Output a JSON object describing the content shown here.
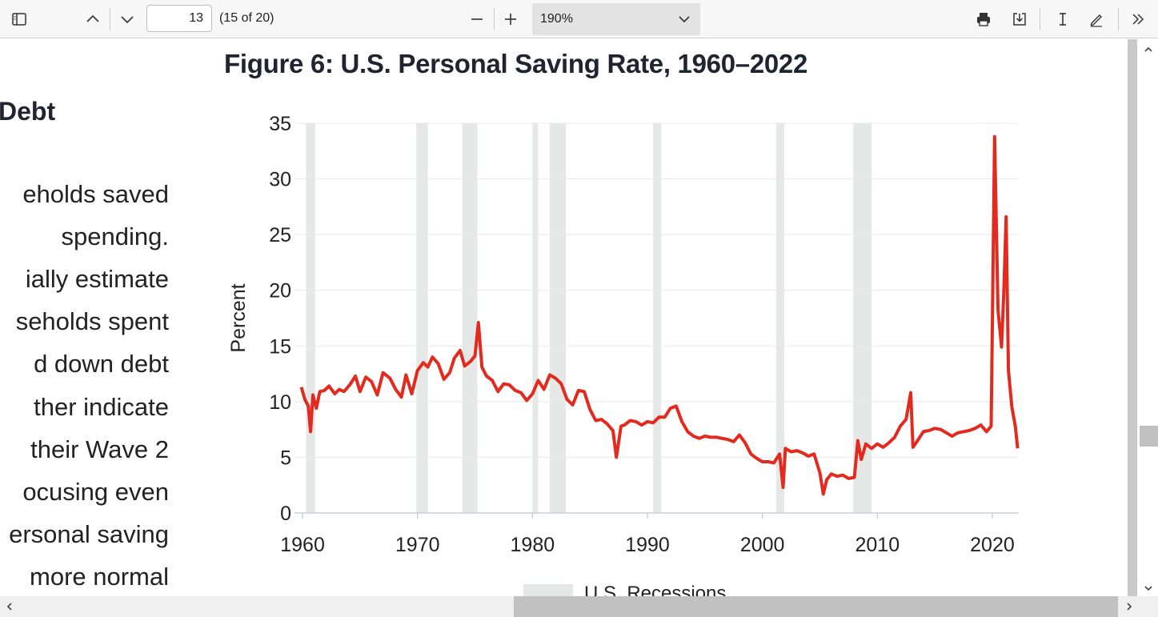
{
  "toolbar": {
    "page_number": "13",
    "page_count": "(15 of 20)",
    "zoom": "190%",
    "icons": [
      "sidebar-toggle-icon",
      "chevron-up-icon",
      "chevron-down-icon",
      "minus-icon",
      "plus-icon",
      "print-icon",
      "save-icon",
      "text-cursor-icon",
      "draw-icon",
      "more-tools-icon"
    ]
  },
  "document": {
    "figure_title": "Figure 6: U.S. Personal Saving Rate, 1960–2022",
    "section_heading": "Debt",
    "body_lines": [
      "eholds  saved",
      "spending.",
      "ially  estimate",
      "seholds spent",
      "d  down  debt",
      "ther  indicate",
      " their Wave 2",
      "ocusing even",
      "ersonal saving",
      "more  normal"
    ]
  },
  "chart_data": {
    "type": "line",
    "title": "Figure 6: U.S. Personal Saving Rate, 1960–2022",
    "xlabel": "",
    "ylabel": "Percent",
    "xlim": [
      1959.3,
      2022.3
    ],
    "ylim": [
      0,
      35
    ],
    "x_ticks": [
      "1960",
      "1970",
      "1980",
      "1990",
      "2000",
      "2010",
      "2020"
    ],
    "y_ticks": [
      "0",
      "5",
      "10",
      "15",
      "20",
      "25",
      "30",
      "35"
    ],
    "grid": "horizontal",
    "legend": {
      "placement": "bottom",
      "entries": [
        "U.S. Recessions"
      ]
    },
    "colors": {
      "series": "#e32a1e",
      "recession": "#e6e8e8",
      "grid": "#e8e8e8"
    },
    "recessions": [
      [
        1960.3,
        1961.1
      ],
      [
        1969.9,
        1970.9
      ],
      [
        1973.9,
        1975.2
      ],
      [
        1980.0,
        1980.5
      ],
      [
        1981.5,
        1982.9
      ],
      [
        1990.5,
        1991.2
      ],
      [
        2001.2,
        2001.9
      ],
      [
        2007.9,
        2009.5
      ]
    ],
    "series": [
      {
        "values": [
          [
            1959.9,
            11.3
          ],
          [
            1960.2,
            10.2
          ],
          [
            1960.5,
            9.6
          ],
          [
            1960.7,
            7.3
          ],
          [
            1960.9,
            10.6
          ],
          [
            1961.2,
            9.4
          ],
          [
            1961.5,
            10.9
          ],
          [
            1961.9,
            11.0
          ],
          [
            1962.3,
            11.4
          ],
          [
            1962.8,
            10.7
          ],
          [
            1963.2,
            11.1
          ],
          [
            1963.6,
            10.9
          ],
          [
            1964.1,
            11.5
          ],
          [
            1964.6,
            12.3
          ],
          [
            1965.0,
            10.9
          ],
          [
            1965.5,
            12.2
          ],
          [
            1966.0,
            11.8
          ],
          [
            1966.5,
            10.6
          ],
          [
            1967.0,
            12.6
          ],
          [
            1967.6,
            12.1
          ],
          [
            1968.1,
            11.1
          ],
          [
            1968.6,
            10.4
          ],
          [
            1969.0,
            12.4
          ],
          [
            1969.5,
            10.7
          ],
          [
            1970.0,
            12.8
          ],
          [
            1970.5,
            13.5
          ],
          [
            1970.9,
            13.1
          ],
          [
            1971.3,
            14.0
          ],
          [
            1971.8,
            13.4
          ],
          [
            1972.3,
            12.0
          ],
          [
            1972.8,
            12.6
          ],
          [
            1973.2,
            13.9
          ],
          [
            1973.7,
            14.6
          ],
          [
            1974.1,
            13.2
          ],
          [
            1974.6,
            13.6
          ],
          [
            1975.0,
            14.1
          ],
          [
            1975.3,
            17.1
          ],
          [
            1975.6,
            13.1
          ],
          [
            1976.0,
            12.3
          ],
          [
            1976.5,
            11.9
          ],
          [
            1977.0,
            10.9
          ],
          [
            1977.5,
            11.6
          ],
          [
            1978.0,
            11.5
          ],
          [
            1978.5,
            11.0
          ],
          [
            1979.0,
            10.8
          ],
          [
            1979.5,
            10.1
          ],
          [
            1980.0,
            10.7
          ],
          [
            1980.5,
            11.9
          ],
          [
            1981.0,
            11.1
          ],
          [
            1981.5,
            12.4
          ],
          [
            1982.0,
            12.1
          ],
          [
            1982.5,
            11.6
          ],
          [
            1983.0,
            10.2
          ],
          [
            1983.5,
            9.7
          ],
          [
            1984.0,
            11.0
          ],
          [
            1984.5,
            10.9
          ],
          [
            1985.0,
            9.3
          ],
          [
            1985.5,
            8.3
          ],
          [
            1986.0,
            8.4
          ],
          [
            1986.5,
            8.0
          ],
          [
            1987.0,
            7.4
          ],
          [
            1987.3,
            5.0
          ],
          [
            1987.7,
            7.8
          ],
          [
            1988.0,
            7.9
          ],
          [
            1988.5,
            8.3
          ],
          [
            1989.0,
            8.2
          ],
          [
            1989.5,
            7.9
          ],
          [
            1990.0,
            8.2
          ],
          [
            1990.5,
            8.1
          ],
          [
            1991.0,
            8.6
          ],
          [
            1991.5,
            8.6
          ],
          [
            1992.0,
            9.4
          ],
          [
            1992.5,
            9.6
          ],
          [
            1993.0,
            8.2
          ],
          [
            1993.5,
            7.3
          ],
          [
            1994.0,
            6.9
          ],
          [
            1994.5,
            6.7
          ],
          [
            1995.0,
            6.9
          ],
          [
            1995.5,
            6.8
          ],
          [
            1996.0,
            6.8
          ],
          [
            1996.5,
            6.7
          ],
          [
            1997.0,
            6.6
          ],
          [
            1997.5,
            6.4
          ],
          [
            1998.0,
            7.0
          ],
          [
            1998.5,
            6.3
          ],
          [
            1999.0,
            5.3
          ],
          [
            1999.5,
            4.9
          ],
          [
            2000.0,
            4.6
          ],
          [
            2000.5,
            4.6
          ],
          [
            2001.0,
            4.5
          ],
          [
            2001.5,
            5.3
          ],
          [
            2001.8,
            2.3
          ],
          [
            2002.0,
            5.8
          ],
          [
            2002.5,
            5.5
          ],
          [
            2003.0,
            5.6
          ],
          [
            2003.5,
            5.4
          ],
          [
            2004.0,
            5.1
          ],
          [
            2004.5,
            5.3
          ],
          [
            2005.0,
            3.6
          ],
          [
            2005.3,
            1.7
          ],
          [
            2005.6,
            3.0
          ],
          [
            2006.0,
            3.5
          ],
          [
            2006.5,
            3.3
          ],
          [
            2007.0,
            3.4
          ],
          [
            2007.5,
            3.1
          ],
          [
            2008.0,
            3.2
          ],
          [
            2008.3,
            6.5
          ],
          [
            2008.6,
            4.8
          ],
          [
            2009.0,
            6.2
          ],
          [
            2009.5,
            5.8
          ],
          [
            2010.0,
            6.2
          ],
          [
            2010.5,
            5.9
          ],
          [
            2011.0,
            6.3
          ],
          [
            2011.5,
            6.8
          ],
          [
            2012.0,
            7.8
          ],
          [
            2012.5,
            8.4
          ],
          [
            2012.9,
            10.8
          ],
          [
            2013.1,
            5.9
          ],
          [
            2013.5,
            6.5
          ],
          [
            2014.0,
            7.3
          ],
          [
            2014.5,
            7.4
          ],
          [
            2015.0,
            7.6
          ],
          [
            2015.5,
            7.5
          ],
          [
            2016.0,
            7.2
          ],
          [
            2016.5,
            6.9
          ],
          [
            2017.0,
            7.2
          ],
          [
            2017.5,
            7.3
          ],
          [
            2018.0,
            7.4
          ],
          [
            2018.5,
            7.6
          ],
          [
            2019.0,
            7.9
          ],
          [
            2019.5,
            7.3
          ],
          [
            2019.9,
            7.8
          ],
          [
            2020.2,
            33.8
          ],
          [
            2020.5,
            18.2
          ],
          [
            2020.8,
            14.9
          ],
          [
            2021.0,
            19.8
          ],
          [
            2021.2,
            26.6
          ],
          [
            2021.4,
            12.8
          ],
          [
            2021.7,
            9.5
          ],
          [
            2022.0,
            7.8
          ],
          [
            2022.2,
            5.8
          ]
        ]
      }
    ]
  }
}
